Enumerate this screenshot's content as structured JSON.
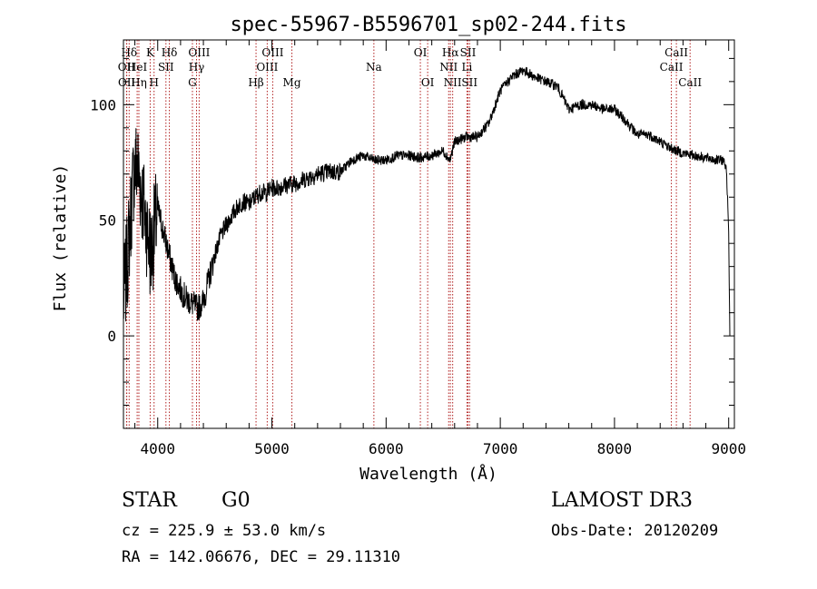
{
  "chart_data": {
    "type": "line",
    "title": "spec-55967-B5596701_sp02-244.fits",
    "xlabel": "Wavelength (Å)",
    "ylabel": "Flux (relative)",
    "xlim": [
      3700,
      9050
    ],
    "ylim": [
      -40,
      128
    ],
    "x_ticks": [
      4000,
      5000,
      6000,
      7000,
      8000,
      9000
    ],
    "y_ticks": [
      0,
      50,
      100
    ],
    "series": [
      {
        "x": [
          3700,
          3730,
          3760,
          3790,
          3820,
          3850,
          3880,
          3910,
          3940,
          3970,
          4000,
          4050,
          4100,
          4150,
          4200,
          4250,
          4300,
          4350,
          4400,
          4450,
          4500,
          4550,
          4600,
          4650,
          4700,
          4750,
          4800,
          4850,
          4900,
          4950,
          5000,
          5050,
          5100,
          5200,
          5300,
          5400,
          5500,
          5600,
          5700,
          5800,
          5900,
          6000,
          6100,
          6200,
          6300,
          6400,
          6500,
          6560,
          6600,
          6700,
          6800,
          6900,
          7000,
          7100,
          7200,
          7300,
          7400,
          7500,
          7600,
          7700,
          7800,
          7900,
          8000,
          8100,
          8200,
          8300,
          8400,
          8500,
          8600,
          8700,
          8800,
          8900,
          8950,
          8980,
          9000,
          9010
        ],
        "y": [
          15,
          30,
          50,
          70,
          75,
          65,
          55,
          45,
          35,
          45,
          55,
          45,
          35,
          25,
          20,
          16,
          14,
          12,
          15,
          25,
          35,
          43,
          48,
          52,
          56,
          58,
          57,
          60,
          62,
          62,
          64,
          64,
          65,
          66,
          68,
          70,
          71,
          71,
          76,
          78,
          76,
          76,
          78,
          78,
          77,
          78,
          80,
          76,
          84,
          86,
          86,
          92,
          106,
          112,
          115,
          112,
          110,
          108,
          98,
          100,
          100,
          98,
          98,
          93,
          87,
          87,
          84,
          81,
          79,
          78,
          77,
          76,
          76,
          73,
          45,
          0
        ]
      }
    ],
    "lines": [
      {
        "name": "Hδ",
        "x": 3750,
        "row": 1
      },
      {
        "name": "OII",
        "x": 3727,
        "row": 2
      },
      {
        "name": "OII",
        "x": 3729,
        "row": 3
      },
      {
        "name": "K",
        "x": 3934,
        "row": 1
      },
      {
        "name": "HeI",
        "x": 3820,
        "row": 2
      },
      {
        "name": "Hη",
        "x": 3835,
        "row": 3
      },
      {
        "name": "Hδ",
        "x": 4102,
        "row": 1
      },
      {
        "name": "SII",
        "x": 4072,
        "row": 2
      },
      {
        "name": "H",
        "x": 3968,
        "row": 3
      },
      {
        "name": "OIII",
        "x": 4363,
        "row": 1
      },
      {
        "name": "Hγ",
        "x": 4340,
        "row": 2
      },
      {
        "name": "G",
        "x": 4304,
        "row": 3
      },
      {
        "name": "OIII",
        "x": 5007,
        "row": 1
      },
      {
        "name": "OIII",
        "x": 4959,
        "row": 2
      },
      {
        "name": "Hβ",
        "x": 4861,
        "row": 3
      },
      {
        "name": "Mg",
        "x": 5175,
        "row": 3
      },
      {
        "name": "Na",
        "x": 5893,
        "row": 2
      },
      {
        "name": "OI",
        "x": 6300,
        "row": 1
      },
      {
        "name": "OI",
        "x": 6364,
        "row": 3
      },
      {
        "name": "Hα",
        "x": 6563,
        "row": 1
      },
      {
        "name": "SII",
        "x": 6717,
        "row": 1
      },
      {
        "name": "NII",
        "x": 6548,
        "row": 2
      },
      {
        "name": "Li",
        "x": 6708,
        "row": 2
      },
      {
        "name": "NII",
        "x": 6583,
        "row": 3
      },
      {
        "name": "SII",
        "x": 6731,
        "row": 3
      },
      {
        "name": "CaII",
        "x": 8542,
        "row": 1
      },
      {
        "name": "CaII",
        "x": 8498,
        "row": 2
      },
      {
        "name": "CaII",
        "x": 8662,
        "row": 3
      }
    ]
  },
  "info": {
    "class": "STAR",
    "subclass": "G0",
    "survey": "LAMOST DR3",
    "cz": "cz = 225.9 ± 53.0 km/s",
    "obsdate": "Obs-Date: 20120209",
    "radec": "RA = 142.06676, DEC =  29.11310"
  }
}
